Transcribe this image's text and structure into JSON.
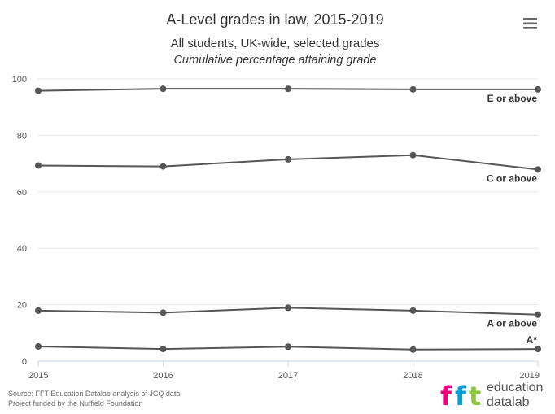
{
  "chart_data": {
    "type": "line",
    "title": "A-Level grades in law, 2015-2019",
    "subtitle": "All students, UK-wide, selected grades",
    "subtitle2": "Cumulative percentage attaining grade",
    "x": [
      "2015",
      "2016",
      "2017",
      "2018",
      "2019"
    ],
    "ylim": [
      0,
      100
    ],
    "yticks": [
      "0",
      "20",
      "40",
      "60",
      "80",
      "100"
    ],
    "grid": true,
    "line_color": "#555555",
    "series": [
      {
        "name": "E or above",
        "values": [
          95.8,
          96.5,
          96.5,
          96.3,
          96.3
        ]
      },
      {
        "name": "C or above",
        "values": [
          69.3,
          69.0,
          71.5,
          73.0,
          67.9
        ]
      },
      {
        "name": "A or above",
        "values": [
          17.9,
          17.2,
          18.9,
          17.9,
          16.5
        ]
      },
      {
        "name": "A*",
        "values": [
          5.2,
          4.3,
          5.1,
          4.1,
          4.3
        ]
      }
    ]
  },
  "credits": {
    "line1": "Source: FFT Education Datalab analysis of JCQ data",
    "line2": "Project funded by the Nuffield Foundation"
  },
  "logo": {
    "mark": "fft",
    "line1": "education",
    "line2": "datalab",
    "colors": [
      "#e5007e",
      "#00a0d2",
      "#8dc63f"
    ]
  },
  "menu": {
    "icon": "hamburger-menu-icon"
  }
}
